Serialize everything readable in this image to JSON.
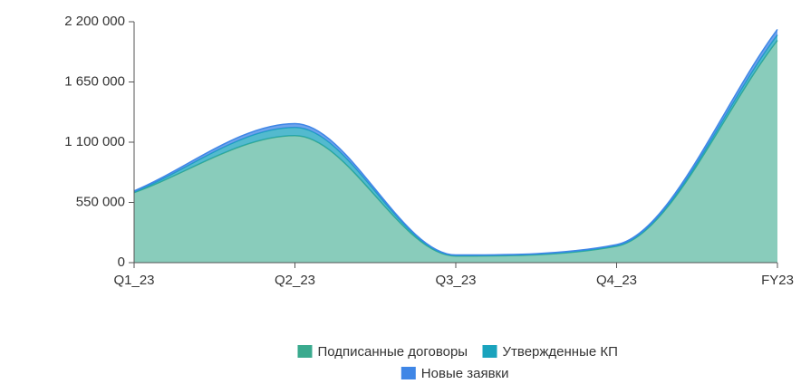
{
  "chart_data": {
    "type": "stacked_area",
    "categories": [
      "Q1_23",
      "Q2_23",
      "Q3_23",
      "Q4_23",
      "FY23"
    ],
    "series": [
      {
        "name": "Подписанные договоры",
        "color": "#3aaa8e",
        "values": [
          640000,
          1160000,
          60000,
          150000,
          2030000
        ]
      },
      {
        "name": "Утвержденные КП",
        "color": "#1aa3bd",
        "values": [
          5000,
          75000,
          5000,
          5000,
          50000
        ]
      },
      {
        "name": "Новые заявки",
        "color": "#3f86e6",
        "values": [
          10000,
          35000,
          5000,
          10000,
          50000
        ]
      }
    ],
    "ylim": [
      0,
      2200000
    ],
    "yticks": [
      0,
      {
        "value": 550000,
        "label": "550 000"
      },
      {
        "value": 1100000,
        "label": "1 100 000"
      },
      {
        "value": 1650000,
        "label": "1 650 000"
      },
      {
        "value": 2200000,
        "label": "2 200 000"
      }
    ],
    "legend": "bottom"
  }
}
